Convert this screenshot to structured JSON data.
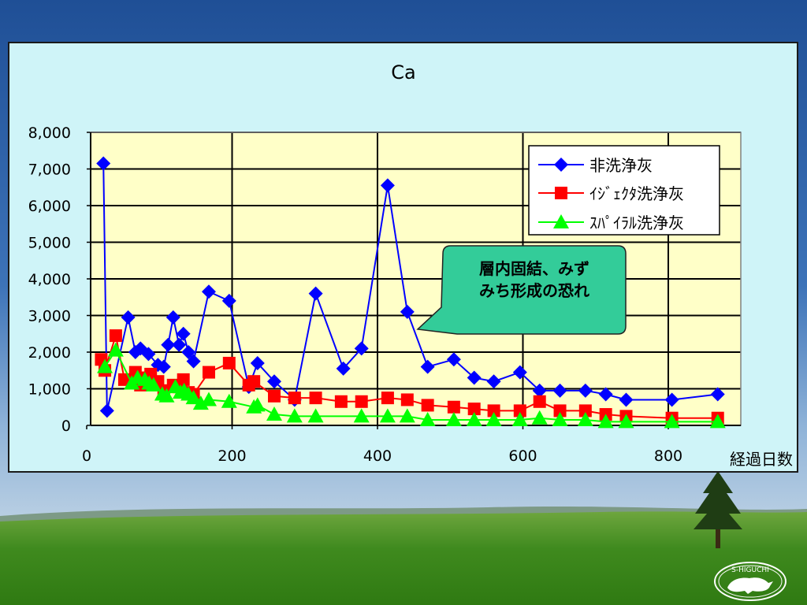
{
  "chart_data": {
    "type": "line",
    "title": "Ca",
    "xlabel": "経過日数",
    "ylabel": "",
    "xlim": [
      0,
      900
    ],
    "ylim": [
      0,
      8000
    ],
    "xticks": [
      0,
      200,
      400,
      600,
      800
    ],
    "yticks": [
      0,
      1000,
      2000,
      3000,
      4000,
      5000,
      6000,
      7000,
      8000
    ],
    "x_tick_labels": [
      "0",
      "200",
      "400",
      "600",
      "800"
    ],
    "y_tick_labels": [
      "0",
      "1,000",
      "2,000",
      "3,000",
      "4,000",
      "5,000",
      "6,000",
      "7,000",
      "8,000"
    ],
    "grid": "vertical and horizontal major gridlines",
    "legend_position": "top-right",
    "series": [
      {
        "name": "非洗浄灰",
        "color": "#0000ff",
        "marker": "diamond",
        "x": [
          23,
          28,
          57,
          67,
          74,
          85,
          98,
          106,
          112,
          119,
          127,
          133,
          140,
          147,
          168,
          196,
          223,
          235,
          258,
          286,
          315,
          353,
          378,
          414,
          441,
          469,
          505,
          533,
          560,
          596,
          623,
          651,
          686,
          714,
          742,
          805,
          868
        ],
        "y": [
          7150,
          400,
          2950,
          2000,
          2100,
          1950,
          1650,
          1600,
          2200,
          2950,
          2200,
          2500,
          2000,
          1750,
          3650,
          3400,
          1050,
          1700,
          1200,
          700,
          3600,
          1550,
          2100,
          6550,
          3100,
          1600,
          1800,
          1300,
          1200,
          1450,
          950,
          950,
          950,
          850,
          700,
          700,
          850
        ]
      },
      {
        "name": "ｲｼﾞｪｸﾀ洗浄灰",
        "color": "#ff0000",
        "marker": "square",
        "x": [
          20,
          25,
          40,
          52,
          67,
          74,
          80,
          88,
          98,
          106,
          119,
          127,
          133,
          140,
          147,
          168,
          196,
          223,
          230,
          258,
          286,
          315,
          350,
          378,
          414,
          441,
          469,
          505,
          533,
          560,
          596,
          623,
          651,
          686,
          714,
          742,
          805,
          868
        ],
        "y": [
          1800,
          1500,
          2450,
          1250,
          1450,
          1100,
          1300,
          1400,
          1200,
          950,
          1100,
          1050,
          1250,
          900,
          850,
          1450,
          1700,
          1100,
          1200,
          800,
          750,
          750,
          650,
          650,
          750,
          700,
          550,
          500,
          450,
          400,
          400,
          650,
          400,
          400,
          300,
          250,
          200,
          200
        ]
      },
      {
        "name": "ｽﾊﾟｲﾗﾙ洗浄灰",
        "color": "#00ff00",
        "marker": "triangle",
        "x": [
          25,
          40,
          62,
          70,
          80,
          86,
          92,
          104,
          110,
          122,
          129,
          134,
          140,
          147,
          157,
          168,
          196,
          230,
          235,
          258,
          286,
          315,
          378,
          414,
          441,
          469,
          505,
          533,
          560,
          596,
          623,
          651,
          686,
          714,
          742,
          805,
          868
        ],
        "y": [
          1600,
          2050,
          1150,
          1300,
          1250,
          1150,
          1100,
          850,
          800,
          1050,
          900,
          950,
          850,
          750,
          600,
          700,
          650,
          500,
          550,
          300,
          250,
          250,
          250,
          250,
          250,
          150,
          150,
          150,
          150,
          150,
          200,
          150,
          150,
          100,
          100,
          100,
          100
        ]
      }
    ],
    "annotations": [
      {
        "lines": [
          "層内固結、みず",
          "みち形成の恐れ"
        ],
        "fill": "#33cc99"
      }
    ]
  },
  "watermark": {
    "text": "S-HIGUCHI"
  }
}
